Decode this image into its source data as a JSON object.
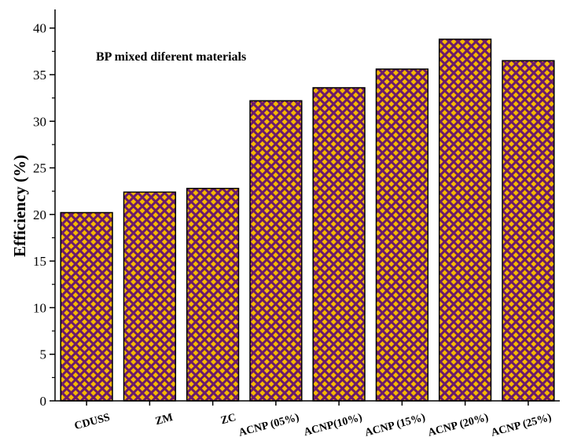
{
  "chart_data": {
    "type": "bar",
    "title": "",
    "annotation": "BP mixed diferent materials",
    "xlabel": "",
    "ylabel": "Efficiency (%)",
    "ylim": [
      0,
      42
    ],
    "yticks": [
      0,
      5,
      10,
      15,
      20,
      25,
      30,
      35,
      40
    ],
    "grid": false,
    "categories": [
      "CDUSS",
      "ZM",
      "ZC",
      "ACNP (05%)",
      "ACNP(10%)",
      "ACNP (15%)",
      "ACNP (20%)",
      "ACNP (25%)"
    ],
    "values": [
      20.2,
      22.4,
      22.8,
      32.2,
      33.6,
      35.6,
      38.8,
      36.5
    ],
    "colors": {
      "bar_fill": "#f5b800",
      "bar_pattern": "#6b1a6b",
      "bar_edge": "#000000",
      "axis": "#000000"
    }
  }
}
